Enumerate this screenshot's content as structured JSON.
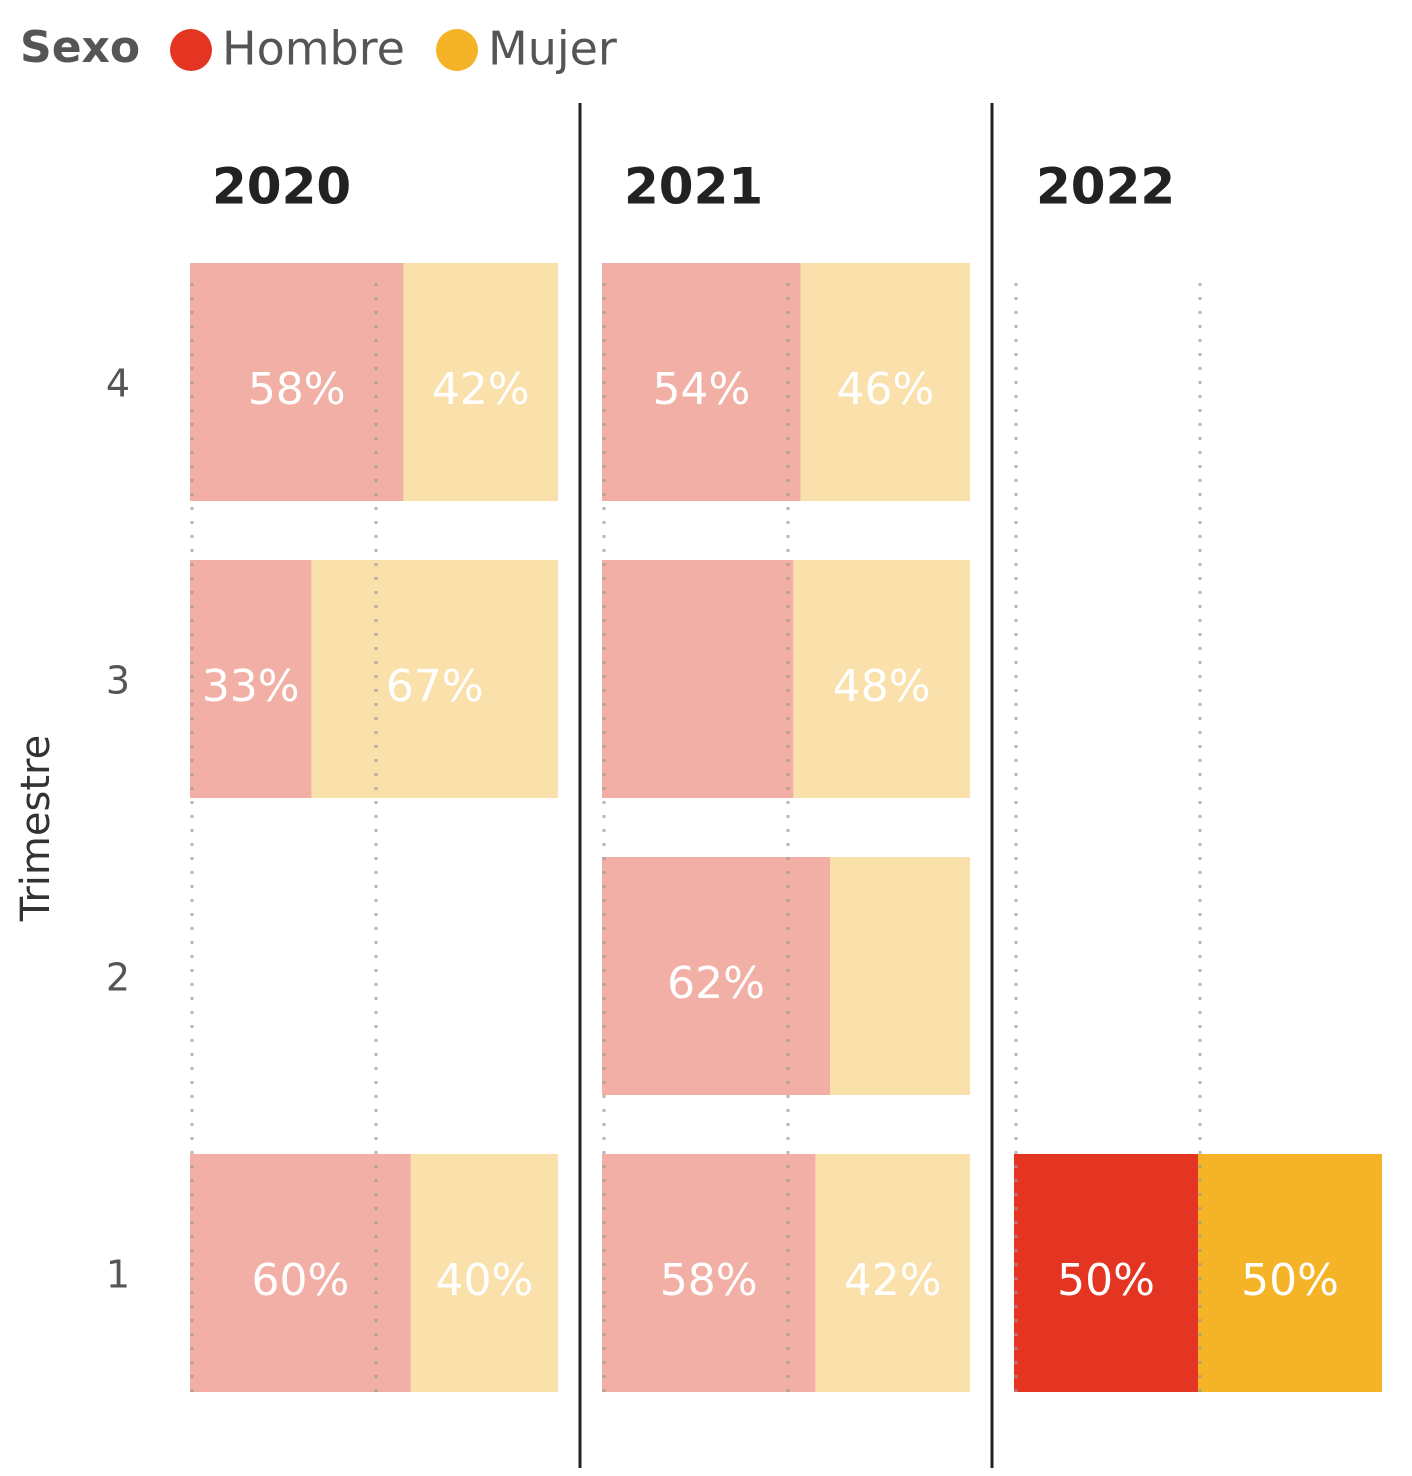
{
  "chart_data": [
    {
      "type": "bar",
      "title": "2020",
      "legend_title": "Sexo",
      "y_label": "Trimestre",
      "categories": [
        "4",
        "3",
        "2",
        "1"
      ],
      "series": [
        {
          "name": "Hombre",
          "color": "#E33521",
          "faded_color": "#F2AFA6",
          "values": [
            58,
            33,
            null,
            60
          ]
        },
        {
          "name": "Mujer",
          "color": "#F5B327",
          "faded_color": "#FAE0AA",
          "values": [
            42,
            67,
            null,
            40
          ]
        }
      ],
      "xlim": [
        0,
        100
      ],
      "xticks": [
        0,
        50
      ],
      "grid": true
    },
    {
      "type": "bar",
      "title": "2021",
      "categories": [
        "4",
        "3",
        "2",
        "1"
      ],
      "series": [
        {
          "name": "Hombre",
          "color": "#E33521",
          "faded_color": "#F2AFA6",
          "values": [
            54,
            52,
            62,
            58
          ],
          "value_labels": [
            "54%",
            null,
            "62%",
            "58%"
          ]
        },
        {
          "name": "Mujer",
          "color": "#F5B327",
          "faded_color": "#FAE0AA",
          "values": [
            46,
            48,
            38,
            42
          ],
          "value_labels": [
            "46%",
            "48%",
            null,
            "42%"
          ]
        }
      ],
      "xlim": [
        0,
        100
      ],
      "xticks": [
        0,
        50
      ],
      "grid": true
    },
    {
      "type": "bar",
      "title": "2022",
      "categories": [
        "4",
        "3",
        "2",
        "1"
      ],
      "series": [
        {
          "name": "Hombre",
          "color": "#E33521",
          "faded_color": "#F2AFA6",
          "values": [
            null,
            null,
            null,
            50
          ]
        },
        {
          "name": "Mujer",
          "color": "#F5B327",
          "faded_color": "#FAE0AA",
          "values": [
            null,
            null,
            null,
            50
          ]
        }
      ],
      "xlim": [
        0,
        100
      ],
      "xticks": [
        0,
        50
      ],
      "grid": true,
      "highlight": "1"
    }
  ]
}
